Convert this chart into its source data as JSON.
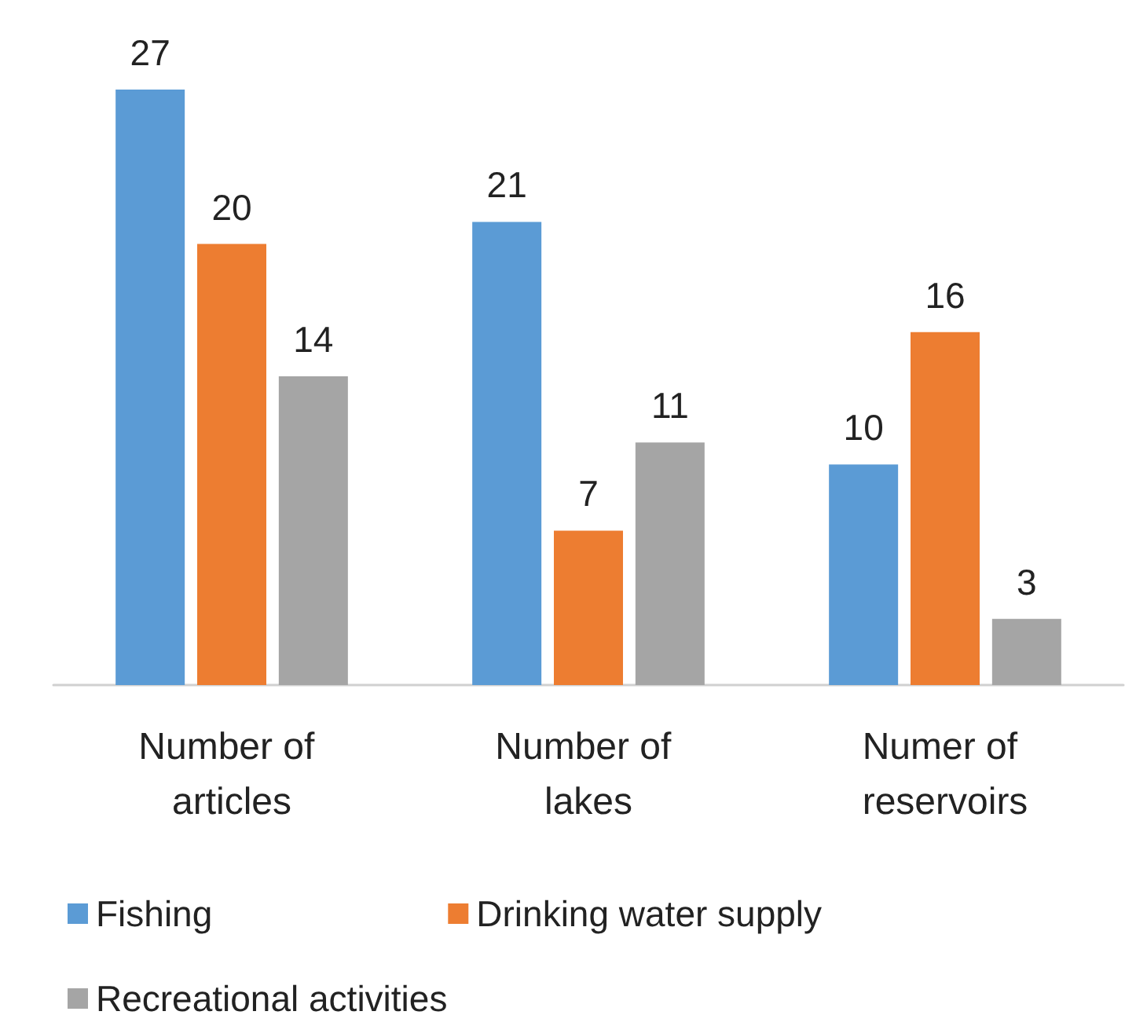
{
  "chart_data": {
    "type": "bar",
    "categories": [
      "Number of articles",
      "Number of lakes",
      "Numer of reservoirs"
    ],
    "series": [
      {
        "name": "Fishing",
        "color": "#5b9bd5",
        "values": [
          27,
          21,
          10
        ]
      },
      {
        "name": "Drinking water supply",
        "color": "#ed7d31",
        "values": [
          20,
          7,
          16
        ]
      },
      {
        "name": "Recreational activities",
        "color": "#a5a5a5",
        "values": [
          14,
          11,
          3
        ]
      }
    ],
    "data_labels": true,
    "legend": "bottom"
  }
}
